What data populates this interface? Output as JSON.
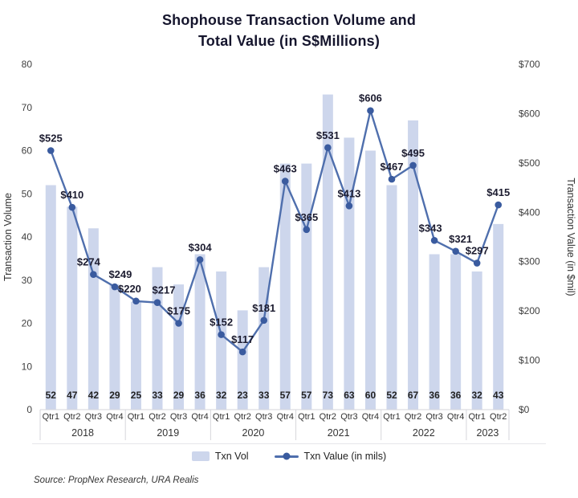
{
  "title": {
    "line1": "Shophouse Transaction Volume and",
    "line2": "Total Value (in S$Millions)"
  },
  "source": "Source: PropNex Research, URA Realis",
  "legend": [
    {
      "label": "Txn Vol",
      "swatch": "bar"
    },
    {
      "label": "Txn Value (in mils)",
      "swatch": "line"
    }
  ],
  "colors": {
    "bar": "#cdd6ec",
    "line": "#4f6fad",
    "marker": "#3a5b9f",
    "title_text": "#15152d",
    "value_label_text": "#1c1c30",
    "axis_text": "#3f3f3f",
    "category_text": "#333333",
    "grid": "#d6d6db"
  },
  "chart_data": {
    "type": "bar+line combo",
    "categories": [
      "Qtr1",
      "Qtr2",
      "Qtr3",
      "Qtr4",
      "Qtr1",
      "Qtr2",
      "Qtr3",
      "Qtr4",
      "Qtr1",
      "Qtr2",
      "Qtr3",
      "Qtr4",
      "Qtr1",
      "Qtr2",
      "Qtr3",
      "Qtr4",
      "Qtr1",
      "Qtr2",
      "Qtr3",
      "Qtr4",
      "Qtr1",
      "Qtr2"
    ],
    "year_groups": [
      {
        "label": "2018",
        "count": 4
      },
      {
        "label": "2019",
        "count": 4
      },
      {
        "label": "2020",
        "count": 4
      },
      {
        "label": "2021",
        "count": 4
      },
      {
        "label": "2022",
        "count": 4
      },
      {
        "label": "2023",
        "count": 2
      }
    ],
    "series": [
      {
        "name": "Txn Vol",
        "type": "bar",
        "axis": "left",
        "values": [
          52,
          47,
          42,
          29,
          25,
          33,
          29,
          36,
          32,
          23,
          33,
          57,
          57,
          73,
          63,
          60,
          52,
          67,
          36,
          36,
          32,
          43
        ]
      },
      {
        "name": "Txn Value (in mils)",
        "type": "line",
        "axis": "right",
        "values": [
          525,
          410,
          274,
          249,
          220,
          217,
          175,
          304,
          152,
          117,
          181,
          463,
          365,
          531,
          413,
          606,
          467,
          495,
          343,
          321,
          297,
          415
        ],
        "label_prefix": "$"
      }
    ],
    "left_axis": {
      "label": "Transaction Volume",
      "min": 0,
      "max": 80,
      "step": 10
    },
    "right_axis": {
      "label": "Transaction Value (in $mil)",
      "min": 0,
      "max": 700,
      "step": 100,
      "prefix": "$"
    },
    "emphasized_index": 21,
    "grid": "off",
    "legend_position": "bottom"
  }
}
